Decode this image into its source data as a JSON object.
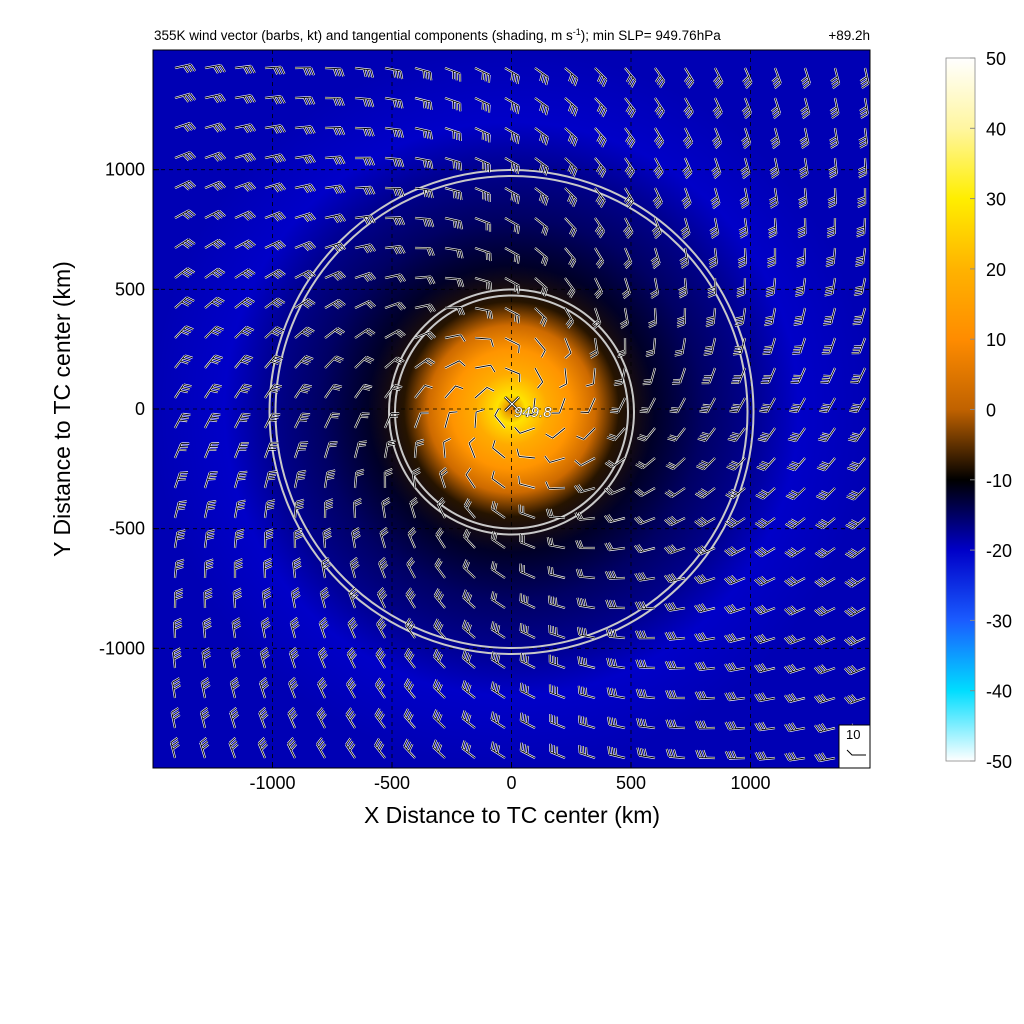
{
  "chart_data": {
    "type": "heatmap",
    "title_main": "355K wind vector (barbs, kt) and tangential components (shading, m s",
    "title_unit_sup": "-1",
    "title_tail": "); min SLP= 949.76hPa",
    "forecast_hour": "+89.2h",
    "xlabel": "X Distance to TC center (km)",
    "ylabel": "Y Distance to TC center (km)",
    "xlim": [
      -1500,
      1500
    ],
    "ylim": [
      -1500,
      1500
    ],
    "x_ticks": [
      -1000,
      -500,
      0,
      500,
      1000
    ],
    "y_ticks": [
      -1000,
      -500,
      0,
      500,
      1000
    ],
    "grid": "dashed",
    "center_marker_label": "949.8",
    "reference_barb_label": "10",
    "range_rings_km": [
      500,
      1000
    ],
    "colorbar": {
      "min": -50,
      "max": 50,
      "ticks": [
        50,
        40,
        30,
        20,
        10,
        0,
        -10,
        -20,
        -30,
        -40,
        -50
      ]
    },
    "tangential_wind_profile": {
      "radius_km": [
        0,
        60,
        150,
        250,
        350,
        450,
        600,
        800,
        1000,
        1200,
        1500
      ],
      "value_ms": [
        5,
        28,
        18,
        12,
        2,
        -8,
        -12,
        -15,
        -17,
        -20,
        -19
      ]
    },
    "colors": {
      "cb_stops": [
        "#ffffff",
        "#fff6a0",
        "#ffee00",
        "#ffb300",
        "#ff8c00",
        "#c06200",
        "#000000",
        "#0000c8",
        "#1a5cff",
        "#00ddff",
        "#ffffff"
      ]
    }
  }
}
